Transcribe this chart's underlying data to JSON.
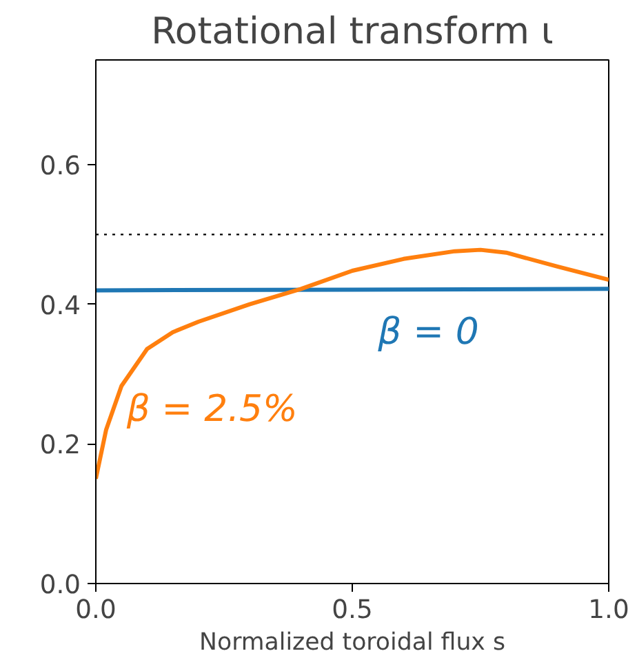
{
  "chart_data": {
    "type": "line",
    "title": "Rotational transform ι",
    "xlabel": "Normalized toroidal flux s",
    "x": [
      0,
      0.02,
      0.05,
      0.1,
      0.15,
      0.2,
      0.3,
      0.4,
      0.5,
      0.6,
      0.7,
      0.75,
      0.8,
      0.9,
      1.0
    ],
    "series": [
      {
        "name": "β = 0",
        "color": "#1f77b4",
        "x": [
          0,
          0.5,
          1.0
        ],
        "values": [
          0.42,
          0.421,
          0.422
        ]
      },
      {
        "name": "β = 2.5%",
        "color": "#ff7f0e",
        "values": [
          0.15,
          0.22,
          0.283,
          0.336,
          0.36,
          0.375,
          0.4,
          0.422,
          0.448,
          0.465,
          0.476,
          0.478,
          0.474,
          0.454,
          0.435
        ]
      }
    ],
    "ref_lines": [
      {
        "axis": "y",
        "value": 0.5,
        "color": "#000000",
        "line_style": "dotted"
      }
    ],
    "xlim": [
      0,
      1.0
    ],
    "ylim": [
      0,
      0.75
    ],
    "xticks": [
      {
        "value": 0,
        "label": "0.0"
      },
      0.5,
      {
        "value": 1,
        "label": "1.0"
      }
    ],
    "yticks": [
      {
        "value": 0,
        "label": "0.0"
      },
      0.2,
      0.4,
      0.6
    ],
    "grid": false,
    "legend": false,
    "marker": "none",
    "line_style": "solid"
  }
}
